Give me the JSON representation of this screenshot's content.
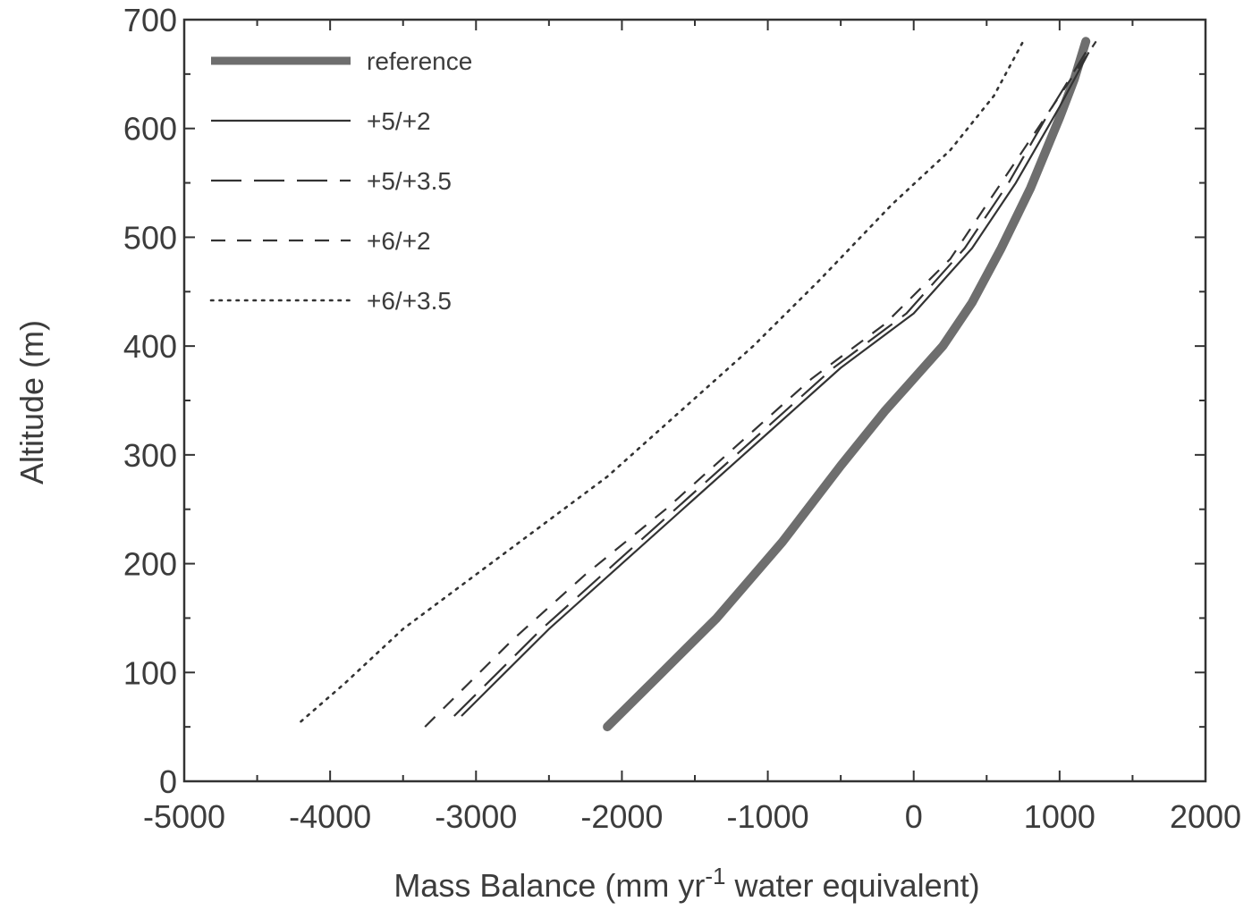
{
  "chart_data": {
    "type": "line",
    "title": "",
    "xlabel": "Mass Balance (mm yr",
    "xlabel_superscript": "-1",
    "xlabel_suffix": " water equivalent)",
    "ylabel": "Altitude (m)",
    "xlim": [
      -5000,
      2000
    ],
    "ylim": [
      0,
      700
    ],
    "x_ticks": [
      -5000,
      -4000,
      -3000,
      -2000,
      -1000,
      0,
      1000,
      2000
    ],
    "y_ticks": [
      0,
      100,
      200,
      300,
      400,
      500,
      600,
      700
    ],
    "x_tick_labels": [
      "-5000",
      "-4000",
      "-3000",
      "-2000",
      "-1000",
      "0",
      "1000",
      "2000"
    ],
    "y_tick_labels": [
      "0",
      "100",
      "200",
      "300",
      "400",
      "500",
      "600",
      "700"
    ],
    "grid": false,
    "legend_position": "top-left",
    "series": [
      {
        "name": "reference",
        "style": "thick",
        "x": [
          -2100,
          -1800,
          -1350,
          -900,
          -500,
          -200,
          0,
          200,
          400,
          600,
          800,
          1000,
          1100,
          1180
        ],
        "y": [
          50,
          90,
          150,
          220,
          290,
          340,
          370,
          400,
          440,
          490,
          545,
          610,
          645,
          680
        ]
      },
      {
        "name": "+5/+2",
        "style": "solid",
        "x": [
          -3100,
          -2800,
          -2500,
          -2000,
          -1500,
          -1000,
          -500,
          0,
          400,
          700,
          1000,
          1200
        ],
        "y": [
          60,
          100,
          140,
          200,
          260,
          320,
          380,
          430,
          490,
          550,
          620,
          670
        ]
      },
      {
        "name": "+5/+3.5",
        "style": "longdash",
        "x": [
          -3150,
          -2850,
          -2550,
          -2050,
          -1550,
          -1050,
          -550,
          -50,
          350,
          650,
          950,
          1180
        ],
        "y": [
          60,
          100,
          140,
          200,
          260,
          320,
          380,
          430,
          490,
          550,
          620,
          670
        ]
      },
      {
        "name": "+6/+2",
        "style": "shortdash",
        "x": [
          -3350,
          -3050,
          -2750,
          -2250,
          -1700,
          -1200,
          -700,
          -200,
          250,
          600,
          950,
          1250
        ],
        "y": [
          50,
          90,
          130,
          190,
          250,
          310,
          370,
          420,
          480,
          550,
          620,
          680
        ]
      },
      {
        "name": "+6/+3.5",
        "style": "dotted",
        "x": [
          -4200,
          -3900,
          -3500,
          -3000,
          -2600,
          -2100,
          -1600,
          -1100,
          -650,
          -150,
          250,
          550,
          750
        ],
        "y": [
          55,
          90,
          140,
          190,
          230,
          280,
          340,
          400,
          460,
          530,
          580,
          630,
          680
        ]
      }
    ]
  }
}
